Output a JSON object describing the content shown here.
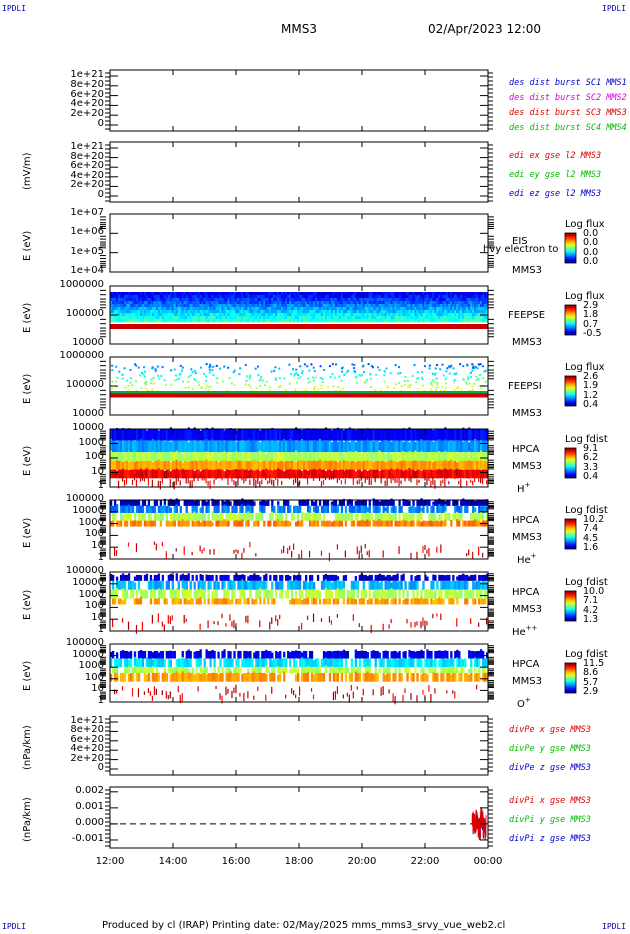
{
  "header": {
    "corner_tl": "IPDLI",
    "corner_tr": "IPDLI",
    "corner_bl": "IPDLI",
    "corner_br": "IPDLI",
    "spacecraft": "MMS3",
    "datetime": "02/Apr/2023 12:00"
  },
  "footer": {
    "text": "Produced by cl (IRAP)   Printing date: 02/May/2025   mms_mms3_srvy_vue_web2.cl"
  },
  "colors": {
    "blue": "#0000cc",
    "magenta": "#dd00dd",
    "red": "#dd0000",
    "green": "#00bb00"
  },
  "chart_data": {
    "type": "stacked-panels",
    "time_range": [
      "2023-04-02 12:00",
      "2023-04-03 00:00"
    ],
    "x_tick_labels": [
      "12:00",
      "14:00",
      "16:00",
      "18:00",
      "20:00",
      "22:00",
      "00:00"
    ],
    "panels": [
      {
        "id": "p1",
        "type": "line",
        "ylabel": "",
        "y_ticks": [
          "1e+21",
          "8e+20",
          "6e+20",
          "4e+20",
          "2e+20",
          "0"
        ],
        "ylim": [
          0,
          1e+21
        ],
        "legend": [
          {
            "text": "des dist burst SC1 MMS1",
            "color": "#0000cc"
          },
          {
            "text": "des dist burst SC2 MMS2",
            "color": "#dd00dd"
          },
          {
            "text": "des dist burst SC3 MMS3",
            "color": "#dd0000"
          },
          {
            "text": "des dist burst SC4 MMS4",
            "color": "#00bb00"
          }
        ]
      },
      {
        "id": "p2",
        "type": "line",
        "ylabel": "(mV/m)",
        "y_ticks": [
          "1e+21",
          "8e+20",
          "6e+20",
          "4e+20",
          "2e+20",
          "0"
        ],
        "ylim": [
          0,
          1e+21
        ],
        "legend": [
          {
            "text": "edi ex gse l2 MMS3",
            "color": "#dd0000"
          },
          {
            "text": "edi ey gse l2 MMS3",
            "color": "#00bb00"
          },
          {
            "text": "edi ez gse l2 MMS3",
            "color": "#0000cc"
          }
        ]
      },
      {
        "id": "p3",
        "type": "spectrogram",
        "ylabel": "E (eV)",
        "y_ticks": [
          "1e+07",
          "1e+06",
          "1e+05",
          "1e+04"
        ],
        "ylim": [
          10000,
          10000000
        ],
        "log": true,
        "side_labels": [
          "EIS",
          "MMS3"
        ],
        "overlay_text": "hvy electron to",
        "colorbar": {
          "title": "Log flux",
          "ticks": [
            "0.0",
            "0.0",
            "0.0",
            "0.0"
          ]
        }
      },
      {
        "id": "p4",
        "type": "spectrogram",
        "ylabel": "E (eV)",
        "y_ticks": [
          "1000000",
          "100000",
          "10000"
        ],
        "ylim": [
          10000,
          1000000
        ],
        "log": true,
        "side_labels": [
          "FEEPSE",
          "MMS3"
        ],
        "colorbar": {
          "title": "Log flux",
          "ticks": [
            "2.9",
            "1.8",
            "0.7",
            "-0.5"
          ]
        }
      },
      {
        "id": "p5",
        "type": "spectrogram",
        "ylabel": "E (eV)",
        "y_ticks": [
          "1000000",
          "100000",
          "10000"
        ],
        "ylim": [
          10000,
          1000000
        ],
        "log": true,
        "side_labels": [
          "FEEPSI",
          "MMS3"
        ],
        "colorbar": {
          "title": "Log flux",
          "ticks": [
            "2.6",
            "1.9",
            "1.2",
            "0.4"
          ]
        }
      },
      {
        "id": "p6",
        "type": "spectrogram",
        "ylabel": "E (eV)",
        "y_ticks": [
          "10000",
          "1000",
          "100",
          "10",
          "1"
        ],
        "ylim": [
          1,
          30000
        ],
        "log": true,
        "side_labels": [
          "HPCA",
          "MMS3"
        ],
        "species": "H",
        "charge": "+",
        "colorbar": {
          "title": "Log fdist",
          "ticks": [
            "9.1",
            "6.2",
            "3.3",
            "0.4"
          ]
        }
      },
      {
        "id": "p7",
        "type": "spectrogram",
        "ylabel": "E (eV)",
        "y_ticks": [
          "100000",
          "10000",
          "1000",
          "100",
          "10",
          "1"
        ],
        "ylim": [
          1,
          100000
        ],
        "log": true,
        "side_labels": [
          "HPCA",
          "MMS3"
        ],
        "species": "He",
        "charge": "+",
        "colorbar": {
          "title": "Log fdist",
          "ticks": [
            "10.2",
            "7.4",
            "4.5",
            "1.6"
          ]
        }
      },
      {
        "id": "p8",
        "type": "spectrogram",
        "ylabel": "E (eV)",
        "y_ticks": [
          "100000",
          "10000",
          "1000",
          "100",
          "10",
          "1"
        ],
        "ylim": [
          1,
          100000
        ],
        "log": true,
        "side_labels": [
          "HPCA",
          "MMS3"
        ],
        "species": "He",
        "charge": "++",
        "colorbar": {
          "title": "Log fdist",
          "ticks": [
            "10.0",
            "7.1",
            "4.2",
            "1.3"
          ]
        }
      },
      {
        "id": "p9",
        "type": "spectrogram",
        "ylabel": "E (eV)",
        "y_ticks": [
          "100000",
          "10000",
          "1000",
          "100",
          "10",
          "1"
        ],
        "ylim": [
          1,
          100000
        ],
        "log": true,
        "side_labels": [
          "HPCA",
          "MMS3"
        ],
        "species": "O",
        "charge": "+",
        "colorbar": {
          "title": "Log fdist",
          "ticks": [
            "11.5",
            "8.6",
            "5.7",
            "2.9"
          ]
        }
      },
      {
        "id": "p10",
        "type": "line",
        "ylabel": "(nPa/km)",
        "y_ticks": [
          "1e+21",
          "8e+20",
          "6e+20",
          "4e+20",
          "2e+20",
          "0"
        ],
        "ylim": [
          0,
          1e+21
        ],
        "legend": [
          {
            "text": "divPe x gse MMS3",
            "color": "#dd0000"
          },
          {
            "text": "divPe y gse MMS3",
            "color": "#00bb00"
          },
          {
            "text": "divPe z gse MMS3",
            "color": "#0000cc"
          }
        ]
      },
      {
        "id": "p11",
        "type": "line",
        "ylabel": "(nPa/km)",
        "y_ticks": [
          "0.002",
          "0.001",
          "0.000",
          "-0.001"
        ],
        "ylim": [
          -0.0015,
          0.0023
        ],
        "legend": [
          {
            "text": "divPi x gse MMS3",
            "color": "#dd0000"
          },
          {
            "text": "divPi y gse MMS3",
            "color": "#00bb00"
          },
          {
            "text": "divPi z gse MMS3",
            "color": "#0000cc"
          }
        ],
        "series": [
          {
            "name": "divPi x gse MMS3",
            "t": [
              "23:30",
              "23:36",
              "23:42",
              "23:48",
              "23:54",
              "00:00"
            ],
            "values": [
              0.0,
              0.0004,
              -0.0006,
              0.0005,
              -0.0005,
              0.0002
            ]
          }
        ]
      }
    ]
  }
}
